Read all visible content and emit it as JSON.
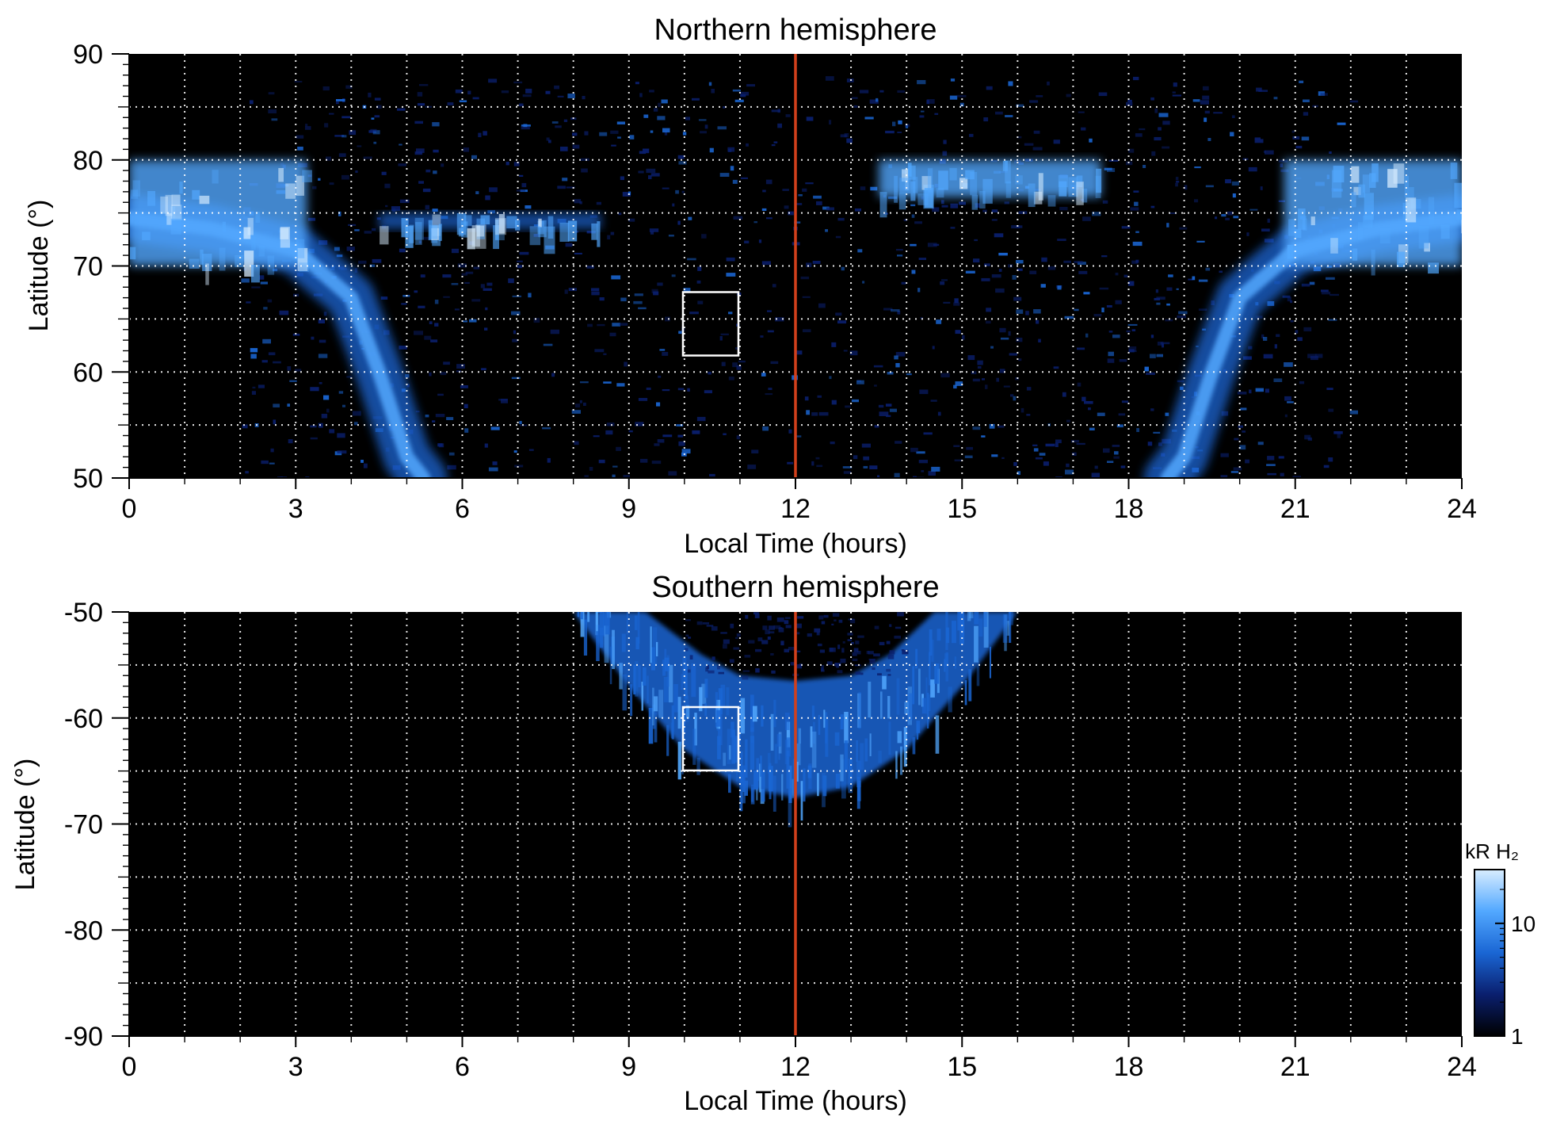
{
  "chart_data": [
    {
      "type": "heatmap",
      "title": "Northern hemisphere",
      "xlabel": "Local Time (hours)",
      "ylabel": "Latitude (°)",
      "xlim": [
        0,
        24
      ],
      "ylim": [
        50,
        90
      ],
      "x_ticks": [
        "0",
        "3",
        "6",
        "9",
        "12",
        "15",
        "18",
        "21",
        "24"
      ],
      "y_ticks": [
        "50",
        "60",
        "70",
        "80",
        "90"
      ],
      "grid": "dotted, every 1 hour and every 5 degrees",
      "reference_line": {
        "x": 12,
        "color": "#d2401c"
      },
      "highlight_box": {
        "x": [
          10,
          11
        ],
        "y": [
          61.5,
          67.5
        ]
      },
      "auroral_oval": {
        "coverage": "night side down to 50°, day side poleward of ~70°",
        "dawn_arc": [
          [
            0,
            74.5
          ],
          [
            1.5,
            73.5
          ],
          [
            3,
            71.5
          ],
          [
            4,
            67
          ],
          [
            4.5,
            60
          ],
          [
            5,
            52
          ],
          [
            5.3,
            50
          ]
        ],
        "dusk_arc": [
          [
            24,
            74.5
          ],
          [
            22.5,
            73.5
          ],
          [
            21,
            71.5
          ],
          [
            20,
            67
          ],
          [
            19.5,
            60
          ],
          [
            19,
            52
          ],
          [
            18.7,
            50
          ]
        ],
        "bright_features": [
          {
            "x": [
              0,
              3.2
            ],
            "y": [
              70,
              80
            ],
            "level": "bright"
          },
          {
            "x": [
              20.8,
              24
            ],
            "y": [
              70,
              80
            ],
            "level": "bright"
          },
          {
            "x": [
              13.5,
              17.5
            ],
            "y": [
              76.5,
              80
            ],
            "level": "bright"
          },
          {
            "x": [
              4.5,
              8.5
            ],
            "y": [
              73.5,
              75
            ],
            "level": "moderate"
          }
        ]
      }
    },
    {
      "type": "heatmap",
      "title": "Southern hemisphere",
      "xlabel": "Local Time (hours)",
      "ylabel": "Latitude (°)",
      "xlim": [
        0,
        24
      ],
      "ylim": [
        -90,
        -50
      ],
      "x_ticks": [
        "0",
        "3",
        "6",
        "9",
        "12",
        "15",
        "18",
        "21",
        "24"
      ],
      "y_ticks": [
        "-50",
        "-60",
        "-70",
        "-80",
        "-90"
      ],
      "grid": "dotted, every 1 hour and every 5 degrees",
      "reference_line": {
        "x": 12,
        "color": "#d2401c"
      },
      "highlight_box": {
        "x": [
          10,
          11
        ],
        "y": [
          -65,
          -59
        ]
      },
      "auroral_oval": {
        "coverage": "day side only, ~8 to ~16 hours",
        "outer_edge": [
          [
            8,
            -50
          ],
          [
            9,
            -57
          ],
          [
            10,
            -63
          ],
          [
            11,
            -66.5
          ],
          [
            12,
            -67.5
          ],
          [
            13,
            -66.5
          ],
          [
            14,
            -63
          ],
          [
            15,
            -57
          ],
          [
            16,
            -50
          ]
        ],
        "inner_edge": [
          [
            9.3,
            -50
          ],
          [
            10.3,
            -54
          ],
          [
            11,
            -56
          ],
          [
            12,
            -56.5
          ],
          [
            13,
            -56
          ],
          [
            13.7,
            -54
          ],
          [
            14.5,
            -50
          ]
        ]
      }
    }
  ],
  "colorbar": {
    "label": "kR H₂",
    "scale": "log",
    "range": [
      1,
      30
    ],
    "ticks": [
      "1",
      "10"
    ],
    "colors": [
      "#000000",
      "#0a1f6e",
      "#1a66d4",
      "#52a8ff",
      "#d8edff"
    ]
  }
}
